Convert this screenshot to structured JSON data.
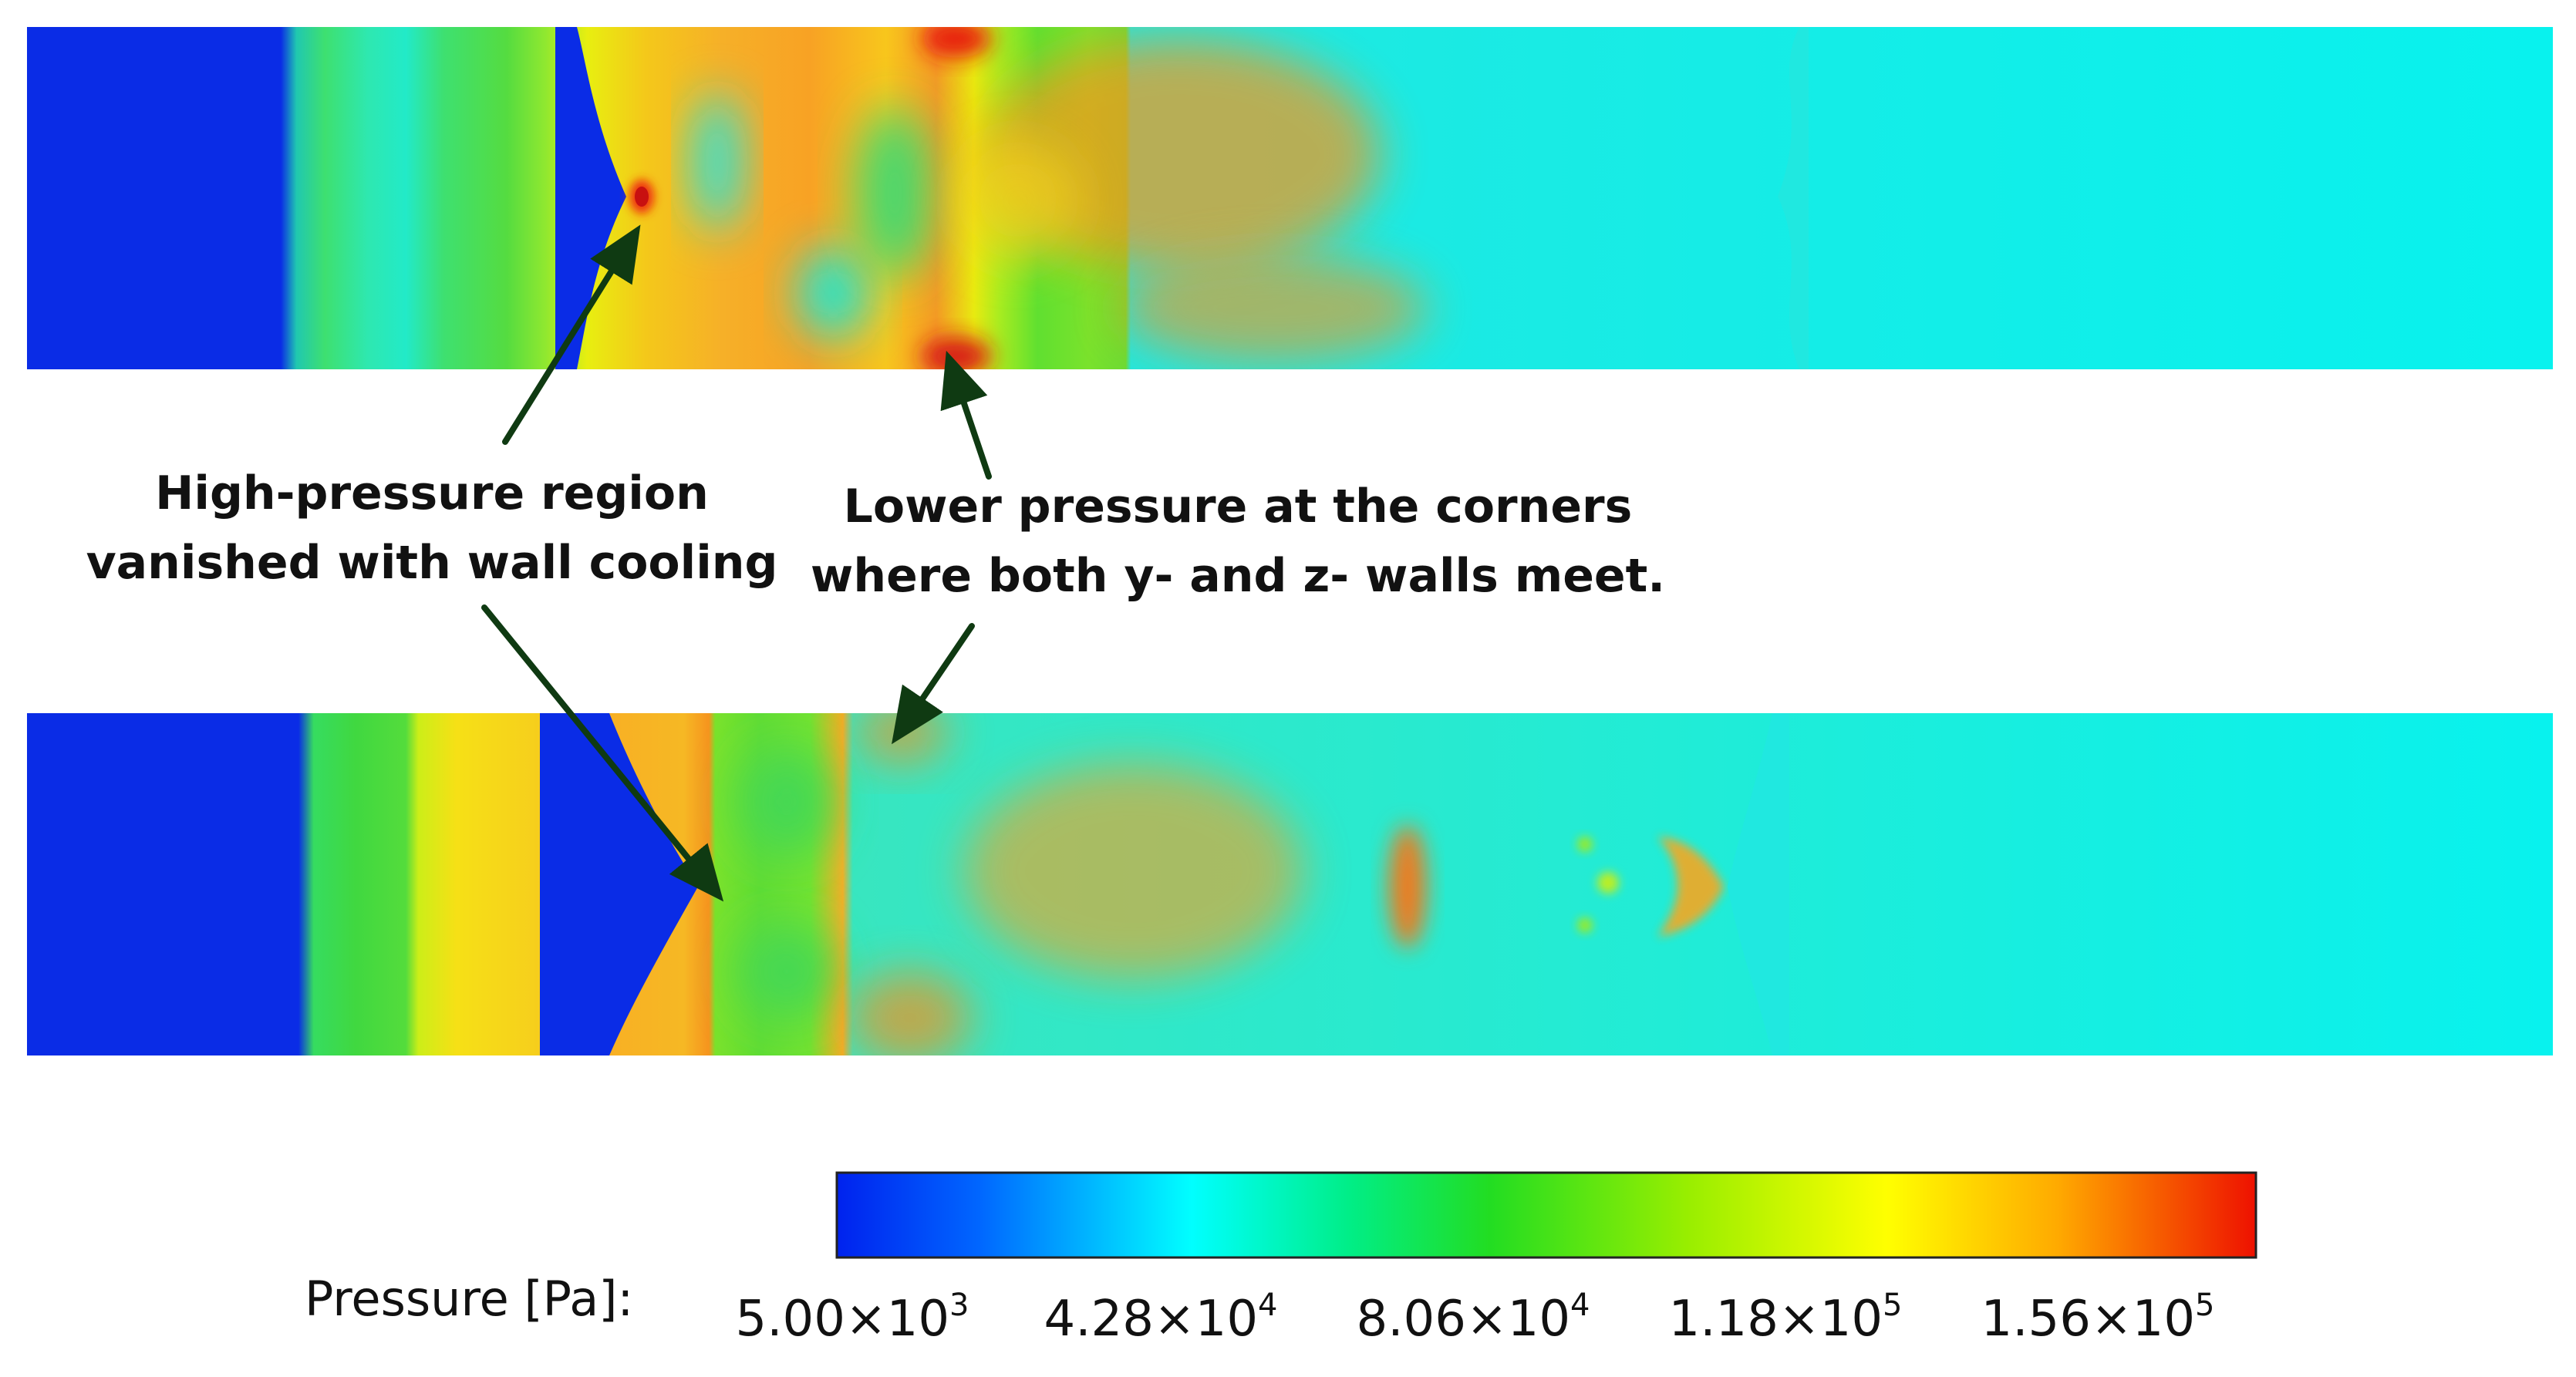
{
  "annotations": {
    "left": {
      "line1": "High-pressure region",
      "line2": "vanished with wall cooling"
    },
    "right": {
      "line1": "Lower pressure at the corners",
      "line2": "where both y- and z- walls meet."
    }
  },
  "colorbar": {
    "title": "Pressure [Pa]:",
    "ticks": [
      {
        "mantissa": "5.00",
        "exponent": "3"
      },
      {
        "mantissa": "4.28",
        "exponent": "4"
      },
      {
        "mantissa": "8.06",
        "exponent": "4"
      },
      {
        "mantissa": "1.18",
        "exponent": "5"
      },
      {
        "mantissa": "1.56",
        "exponent": "5"
      }
    ],
    "colors": [
      "#0022ee",
      "#0088ff",
      "#00ffff",
      "#00ee66",
      "#22dd00",
      "#88ee00",
      "#ffff00",
      "#ffaa00",
      "#ff5500",
      "#ee1100"
    ]
  },
  "colors": {
    "arrow": "#0f3a12",
    "text": "#111111"
  }
}
